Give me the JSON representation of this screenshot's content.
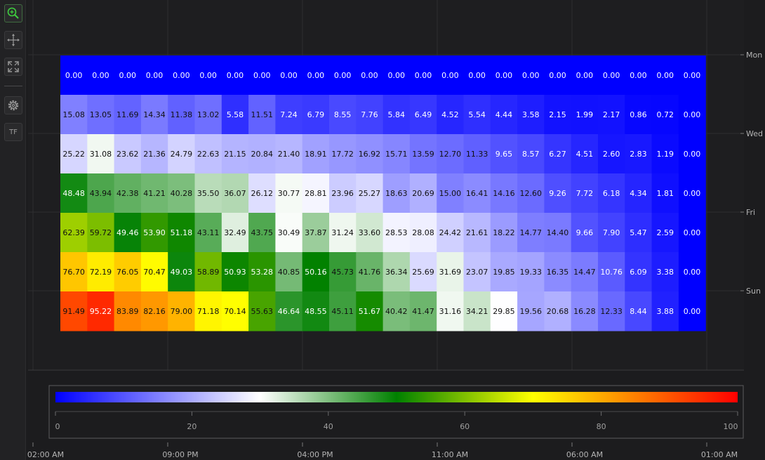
{
  "toolbar": {
    "tools": [
      {
        "name": "zoom-tool",
        "icon": "zoom-icon"
      },
      {
        "name": "pan-tool",
        "icon": "pan-icon"
      },
      {
        "name": "fit-tool",
        "icon": "fit-icon"
      },
      {
        "name": "settings-tool",
        "icon": "gear-icon"
      },
      {
        "name": "theme-tool",
        "icon": "theme-icon",
        "label": "TF"
      }
    ]
  },
  "chart_data": {
    "type": "heatmap",
    "title": "",
    "xlabel": "",
    "ylabel": "",
    "x_tick_labels": [
      "02:00 AM",
      "09:00 PM",
      "04:00 PM",
      "11:00 AM",
      "06:00 AM",
      "01:00 AM"
    ],
    "y_tick_labels": [
      "Mon",
      "Wed",
      "Fri",
      "Sun"
    ],
    "color_scale": {
      "min": 0,
      "max": 100,
      "ticks": [
        0,
        20,
        40,
        60,
        80,
        100
      ],
      "stops": [
        {
          "value": 0,
          "color": "#0000ff"
        },
        {
          "value": 30,
          "color": "#ffffff"
        },
        {
          "value": 50,
          "color": "#008000"
        },
        {
          "value": 70,
          "color": "#ffff00"
        },
        {
          "value": 100,
          "color": "#ff0000"
        }
      ]
    },
    "rows": [
      [
        0.0,
        0.0,
        0.0,
        0.0,
        0.0,
        0.0,
        0.0,
        0.0,
        0.0,
        0.0,
        0.0,
        0.0,
        0.0,
        0.0,
        0.0,
        0.0,
        0.0,
        0.0,
        0.0,
        0.0,
        0.0,
        0.0,
        0.0,
        0.0
      ],
      [
        15.08,
        13.05,
        11.69,
        14.34,
        11.38,
        13.02,
        5.58,
        11.51,
        7.24,
        6.79,
        8.55,
        7.76,
        5.84,
        6.49,
        4.52,
        5.54,
        4.44,
        3.58,
        2.15,
        1.99,
        2.17,
        0.86,
        0.72,
        0.0
      ],
      [
        25.22,
        31.08,
        23.62,
        21.36,
        24.79,
        22.63,
        21.15,
        20.84,
        21.4,
        18.91,
        17.72,
        16.92,
        15.71,
        13.59,
        12.7,
        11.33,
        9.65,
        8.57,
        6.27,
        4.51,
        2.6,
        2.83,
        1.19,
        0.0
      ],
      [
        48.48,
        43.94,
        42.38,
        41.21,
        40.28,
        35.5,
        36.07,
        26.12,
        30.77,
        28.81,
        23.96,
        25.27,
        18.63,
        20.69,
        15.0,
        16.41,
        14.16,
        12.6,
        9.26,
        7.72,
        6.18,
        4.34,
        1.81,
        0.0
      ],
      [
        62.39,
        59.72,
        49.46,
        53.9,
        51.18,
        43.11,
        32.49,
        43.75,
        30.49,
        37.87,
        31.24,
        33.6,
        28.53,
        28.08,
        24.42,
        21.61,
        18.22,
        14.77,
        14.4,
        9.66,
        7.9,
        5.47,
        2.59,
        0.0
      ],
      [
        76.7,
        72.19,
        76.05,
        70.47,
        49.03,
        58.89,
        50.93,
        53.28,
        40.85,
        50.16,
        45.73,
        41.76,
        36.34,
        25.69,
        31.69,
        23.07,
        19.85,
        19.33,
        16.35,
        14.47,
        10.76,
        6.09,
        3.38,
        0.0
      ],
      [
        91.49,
        95.22,
        83.89,
        82.16,
        79.0,
        71.18,
        70.14,
        55.63,
        46.64,
        48.55,
        45.11,
        51.67,
        40.42,
        41.47,
        31.16,
        34.21,
        29.85,
        19.56,
        20.68,
        16.28,
        12.33,
        8.44,
        3.88,
        0.0
      ]
    ]
  }
}
